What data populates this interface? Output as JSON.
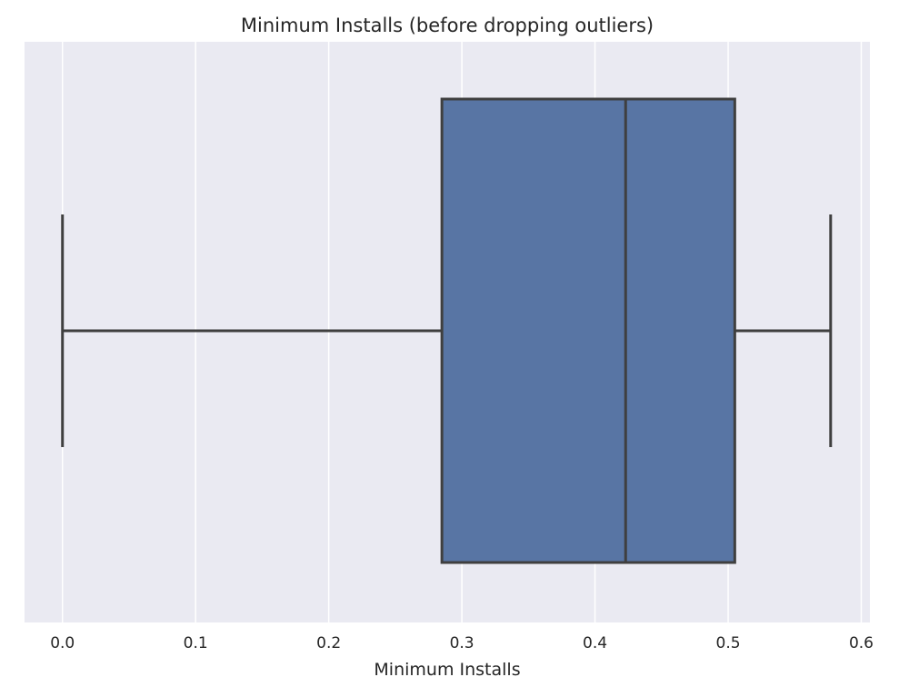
{
  "chart_data": {
    "type": "boxplot",
    "orientation": "horizontal",
    "title": "Minimum Installs (before dropping outliers)",
    "xlabel": "Minimum Installs",
    "ylabel": "",
    "xlim": [
      -0.0285,
      0.6065
    ],
    "xticks": [
      0.0,
      0.1,
      0.2,
      0.3,
      0.4,
      0.5,
      0.6
    ],
    "xtick_labels": [
      "0.0",
      "0.1",
      "0.2",
      "0.3",
      "0.4",
      "0.5",
      "0.6"
    ],
    "grid": true,
    "series": [
      {
        "whisker_low": 0.0,
        "q1": 0.285,
        "median": 0.423,
        "q3": 0.505,
        "whisker_high": 0.577
      }
    ],
    "colors": {
      "background": "#EAEAF2",
      "grid": "#FFFFFF",
      "box_fill": "#5875A4",
      "lines": "#3F3F3F",
      "text": "#262626"
    }
  }
}
